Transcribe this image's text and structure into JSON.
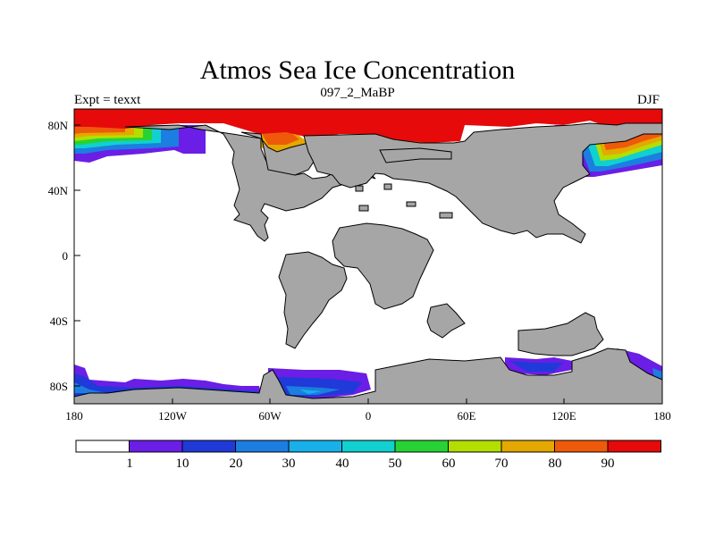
{
  "title": "Atmos Sea Ice Concentration",
  "subtitle": "097_2_MaBP",
  "left_label": "Expt = texxt",
  "right_label": "DJF",
  "colors": {
    "land": "#a6a6a6",
    "background": "#ffffff",
    "levels": [
      "#ffffff",
      "#6a1ee6",
      "#1f3ad8",
      "#1c7ee0",
      "#18b0ea",
      "#10d0d0",
      "#27d334",
      "#b4de00",
      "#e4a800",
      "#ef5a0a",
      "#e60a0a"
    ]
  },
  "map": {
    "lat_ticks": [
      "80N",
      "40N",
      "0",
      "40S",
      "80S"
    ],
    "lon_ticks": [
      "180",
      "120W",
      "60W",
      "0",
      "60E",
      "120E",
      "180"
    ]
  },
  "legend": {
    "labels": [
      "1",
      "10",
      "20",
      "30",
      "40",
      "50",
      "60",
      "70",
      "80",
      "90"
    ]
  }
}
